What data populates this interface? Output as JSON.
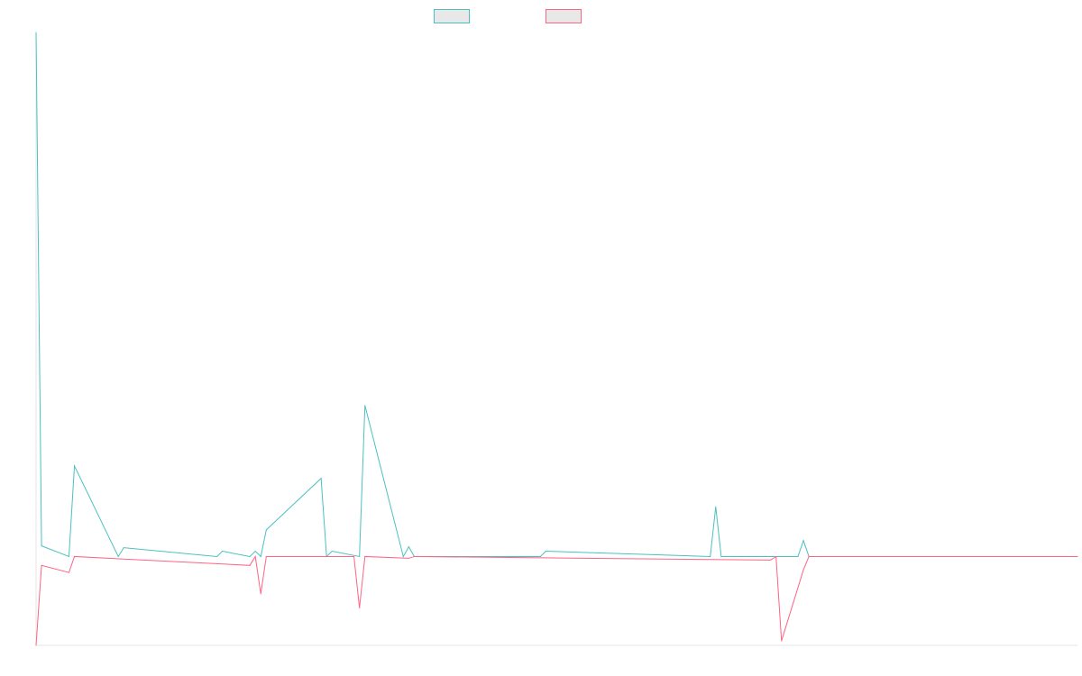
{
  "chart_data": {
    "type": "line",
    "title": "",
    "xlabel": "",
    "ylabel": "",
    "grid": false,
    "legend_position": "top-center",
    "legend_entries": [
      "",
      ""
    ],
    "x_range": [
      0,
      190
    ],
    "ylim": [
      -100,
      590
    ],
    "series": [
      {
        "color": "#4bc0c0",
        "x": [
          0,
          1,
          6,
          7,
          15,
          16,
          33,
          34,
          39,
          40,
          41,
          42,
          52,
          53,
          54,
          59,
          60,
          67,
          68,
          69,
          92,
          93,
          123,
          124,
          125,
          139,
          140,
          141,
          190
        ],
        "values": [
          590,
          12,
          0,
          102,
          0,
          10,
          0,
          6,
          0,
          6,
          0,
          30,
          88,
          0,
          6,
          0,
          170,
          0,
          11,
          0,
          0,
          6,
          0,
          56,
          0,
          0,
          18,
          0,
          0
        ]
      },
      {
        "color": "#ff6384",
        "x": [
          0,
          1,
          6,
          7,
          39,
          40,
          41,
          42,
          58,
          59,
          60,
          68,
          69,
          134,
          135,
          136,
          140,
          141,
          190
        ],
        "values": [
          -100,
          -10,
          -18,
          0,
          -10,
          0,
          -42,
          0,
          0,
          -58,
          0,
          -2,
          0,
          -4,
          0,
          -95,
          -15,
          0,
          0
        ]
      }
    ]
  }
}
